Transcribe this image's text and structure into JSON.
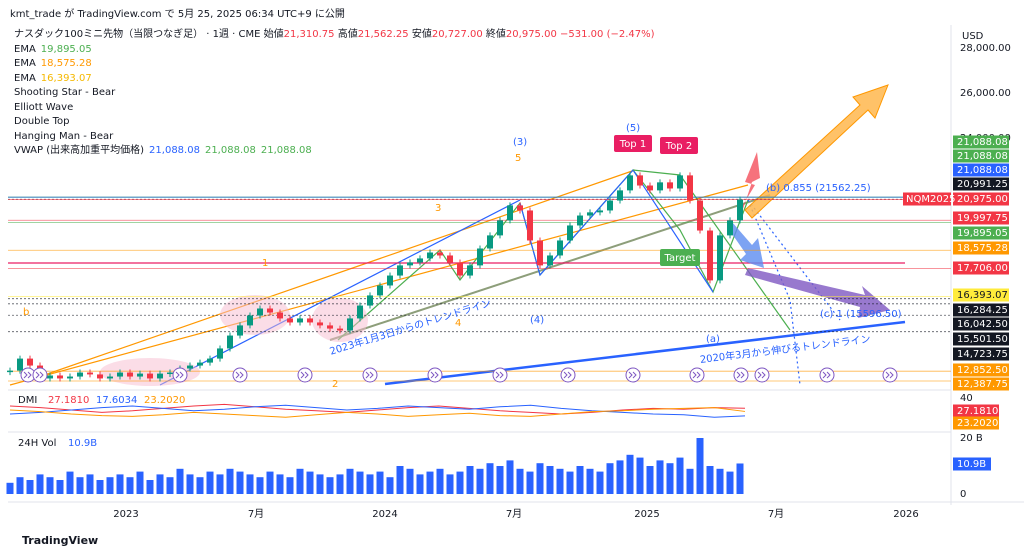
{
  "header": {
    "user": "kmt_trade が TradingView.com で 5月 25, 2025 06:34 UTC+9 に公開",
    "currency": "USD",
    "footer": "TradingView"
  },
  "legend": {
    "symbol": "ナスダック100ミニ先物（当限つなぎ足） · 1週 · CME",
    "open_label": "始値",
    "open": "21,310.75",
    "high_label": "高値",
    "high": "21,562.25",
    "low_label": "安値",
    "low": "20,727.00",
    "close_label": "終値",
    "close": "20,975.00",
    "change": "−531.00 (−2.47%)",
    "indicators": [
      {
        "name": "EMA",
        "values": [
          "19,895.05"
        ],
        "colors": [
          "#4caf50"
        ]
      },
      {
        "name": "EMA",
        "values": [
          "18,575.28"
        ],
        "colors": [
          "#ff9800"
        ]
      },
      {
        "name": "EMA",
        "values": [
          "16,393.07"
        ],
        "colors": [
          "#f5b800"
        ]
      },
      {
        "name": "Shooting Star - Bear"
      },
      {
        "name": "Elliott Wave"
      },
      {
        "name": "Double Top"
      },
      {
        "name": "Hanging Man - Bear"
      },
      {
        "name": "VWAP (出来高加重平均価格)",
        "values": [
          "21,088.08",
          "21,088.08",
          "21,088.08"
        ],
        "colors": [
          "#2962ff",
          "#4caf50",
          "#4caf50"
        ]
      }
    ]
  },
  "chart_data": {
    "type": "candlestick",
    "up_color": "#089981",
    "down_color": "#f23645",
    "values": [
      12880,
      13450,
      13120,
      12510,
      12650,
      12510,
      12600,
      12790,
      12700,
      12510,
      12600,
      12790,
      12600,
      12740,
      12510,
      12740,
      12790,
      12980,
      13120,
      13260,
      13450,
      13930,
      14540,
      15020,
      15490,
      15820,
      15630,
      15350,
      15160,
      15350,
      15160,
      15020,
      14870,
      14780,
      15350,
      15960,
      16440,
      16910,
      17380,
      17860,
      18000,
      18190,
      18470,
      18330,
      18000,
      17380,
      17860,
      18660,
      19280,
      19990,
      20700,
      20460,
      19040,
      17860,
      18330,
      19040,
      19750,
      20220,
      20370,
      20460,
      20930,
      21410,
      22120,
      21640,
      21410,
      21790,
      21500,
      22120,
      20930,
      19510,
      17150,
      19280,
      19990,
      20975
    ],
    "ylim": [
      12200,
      29000
    ],
    "price_labels": [
      {
        "value": 28000,
        "label": "28,000.00"
      },
      {
        "value": 26000,
        "label": "26,000.00"
      },
      {
        "value": 24000,
        "label": "24,000.00"
      },
      {
        "value": 21088.08,
        "label": "21,088.08",
        "color": "#4caf50"
      },
      {
        "value": 21088.08,
        "label": "21,088.08",
        "color": "#4caf50"
      },
      {
        "value": 21088.08,
        "label": "21,088.08",
        "color": "#2962ff"
      },
      {
        "value": 20991.25,
        "label": "20,991.25",
        "color": "#131722"
      },
      {
        "value": 20975,
        "label": "20,975.00",
        "color": "#f23645"
      },
      {
        "value": 19997.75,
        "label": "19,997.75",
        "color": "#f23645"
      },
      {
        "value": 19895.05,
        "label": "19,895.05",
        "color": "#4caf50"
      },
      {
        "value": 18575.28,
        "label": "18,575.28",
        "color": "#ff9800"
      },
      {
        "value": 17706,
        "label": "17,706.00",
        "color": "#f23645"
      },
      {
        "value": 16393.07,
        "label": "16,393.07",
        "color": "#ffeb3b"
      },
      {
        "value": 16284.25,
        "label": "16,284.25",
        "color": "#131722"
      },
      {
        "value": 16042.5,
        "label": "16,042.50",
        "color": "#131722"
      },
      {
        "value": 15501.5,
        "label": "15,501.50",
        "color": "#131722"
      },
      {
        "value": 14723.75,
        "label": "14,723.75",
        "color": "#131722"
      },
      {
        "value": 12852.5,
        "label": "12,852.50",
        "color": "#ff9800"
      },
      {
        "value": 12387.75,
        "label": "12,387.75",
        "color": "#ff9800"
      }
    ],
    "symbol_tag": "NQM2025",
    "annotations": [
      {
        "text": "(3)",
        "color": "#2962ff"
      },
      {
        "text": "5",
        "color": "#ff9800"
      },
      {
        "text": "(5)",
        "color": "#2962ff"
      },
      {
        "text": "3",
        "color": "#ff9800"
      },
      {
        "text": "1",
        "color": "#ff9800"
      },
      {
        "text": "b",
        "color": "#ff9800"
      },
      {
        "text": "4",
        "color": "#ff9800"
      },
      {
        "text": "(4)",
        "color": "#2962ff"
      },
      {
        "text": "(a)",
        "color": "#2962ff"
      },
      {
        "text": "(b) 0.855 (21562.25)",
        "color": "#2962ff"
      },
      {
        "text": "(c) 1 (15596.50)",
        "color": "#2962ff"
      },
      {
        "text": "2",
        "color": "#ff9800"
      },
      {
        "text": "2020年3月から伸びるトレンドライン",
        "color": "#2962ff"
      },
      {
        "text": "2023年1月3日からのトレンドライン",
        "color": "#2962ff"
      }
    ],
    "boxes": [
      {
        "text": "Top 1",
        "color": "#e91e63"
      },
      {
        "text": "Top 2",
        "color": "#e91e63"
      },
      {
        "text": "Target",
        "color": "#4caf50"
      }
    ],
    "time_axis": [
      "2023",
      "7月",
      "2024",
      "7月",
      "2025",
      "7月",
      "2026"
    ]
  },
  "dmi": {
    "title": "DMI",
    "ylim": [
      0,
      45
    ],
    "yticks": [
      40
    ],
    "series": [
      {
        "name": "27.1810",
        "color": "#f23645",
        "values": [
          30,
          28,
          25,
          22,
          24,
          27,
          30,
          32,
          29,
          26,
          24,
          22,
          25,
          28,
          30,
          27,
          24,
          22,
          20,
          22,
          25,
          27,
          26,
          28,
          27.181
        ]
      },
      {
        "name": "17.6034",
        "color": "#2962ff",
        "values": [
          20,
          22,
          25,
          28,
          30,
          27,
          24,
          26,
          29,
          31,
          28,
          25,
          27,
          30,
          28,
          26,
          29,
          31,
          27,
          24,
          22,
          20,
          19,
          16,
          17.6034
        ]
      },
      {
        "name": "23.2020",
        "color": "#ff9800",
        "values": [
          25,
          23,
          20,
          18,
          17,
          19,
          22,
          20,
          18,
          16,
          19,
          22,
          20,
          17,
          19,
          21,
          18,
          17,
          20,
          23,
          24,
          26,
          27,
          28,
          23.202
        ]
      }
    ],
    "axis_labels": [
      {
        "value": 27.181,
        "label": "27.1810",
        "color": "#f23645"
      },
      {
        "value": 23.202,
        "label": "23.2020",
        "color": "#ff9800"
      }
    ]
  },
  "volume": {
    "title": "24H Vol",
    "last_label": "10.9B",
    "color": "#2962ff",
    "ylim": [
      0,
      20
    ],
    "yticks": [
      {
        "value": 20,
        "label": "20 B"
      },
      0
    ],
    "values": [
      4,
      6,
      5,
      7,
      6,
      5,
      8,
      6,
      7,
      5,
      6,
      7,
      6,
      8,
      5,
      7,
      6,
      9,
      7,
      6,
      8,
      7,
      9,
      8,
      7,
      6,
      8,
      7,
      6,
      9,
      8,
      7,
      6,
      7,
      9,
      8,
      7,
      8,
      6,
      10,
      9,
      7,
      8,
      9,
      7,
      8,
      10,
      9,
      11,
      10,
      12,
      9,
      8,
      11,
      10,
      9,
      8,
      10,
      9,
      8,
      11,
      12,
      14,
      13,
      10,
      12,
      11,
      13,
      9,
      20,
      10,
      9,
      8,
      10.9
    ]
  }
}
